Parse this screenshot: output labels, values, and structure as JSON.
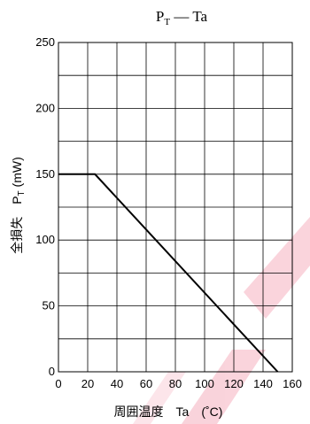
{
  "chart_data": {
    "type": "line",
    "title": "P",
    "title_subscript": "T",
    "title_rest": " — Ta",
    "xlabel": "周囲温度　Ta　(˚C)",
    "ylabel": "全損失　P",
    "ylabel_subscript": "T",
    "ylabel_unit": "  (mW)",
    "xlim": [
      0,
      160
    ],
    "ylim": [
      0,
      250
    ],
    "x_ticks": [
      0,
      20,
      40,
      60,
      80,
      100,
      120,
      140,
      160
    ],
    "y_ticks": [
      0,
      50,
      100,
      150,
      200,
      250
    ],
    "x_grid_step": 20,
    "y_grid_step": 25,
    "grid": true,
    "series": [
      {
        "x": [
          0,
          25,
          150
        ],
        "y": [
          150,
          150,
          0
        ]
      }
    ]
  },
  "colors": {
    "line": "#000000",
    "grid": "#000000",
    "watermark": "#f5b0bf"
  }
}
